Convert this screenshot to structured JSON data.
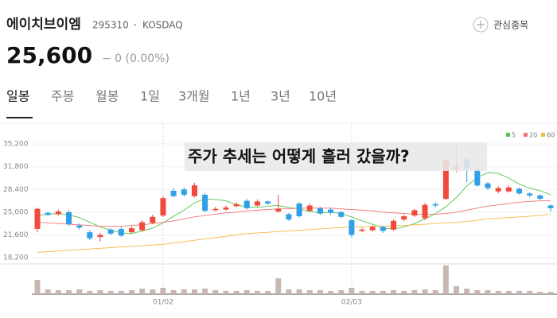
{
  "header": {
    "name": "에이치브이엠",
    "code": "295310",
    "separator": "•",
    "market": "KOSDAQ",
    "watch": "관심종목",
    "price": "25,600",
    "change": "− 0 (0.00%)"
  },
  "tabs": [
    "일봉",
    "주봉",
    "월봉",
    "1일",
    "3개월",
    "1년",
    "3년",
    "10년"
  ],
  "chart_data": {
    "type": "candlestick",
    "annotation": "주가 추세는 어떻게 흘러 갔을까?",
    "categories": [
      null,
      null,
      null,
      null,
      null,
      null,
      null,
      null,
      null,
      null,
      null,
      null,
      "01/02",
      null,
      null,
      null,
      null,
      null,
      null,
      null,
      null,
      null,
      null,
      null,
      null,
      null,
      null,
      null,
      null,
      null,
      "02/03",
      null,
      null,
      null,
      null,
      null,
      null,
      null,
      null,
      null,
      null,
      null,
      null,
      null,
      null,
      null,
      null,
      null,
      null,
      null
    ],
    "open": [
      22500,
      24900,
      24700,
      25000,
      23000,
      22000,
      21300,
      22400,
      22500,
      22000,
      22300,
      23400,
      24500,
      28200,
      28400,
      27400,
      27600,
      25300,
      25400,
      25900,
      26700,
      26000,
      26600,
      25100,
      24700,
      26300,
      25200,
      25600,
      25400,
      25000,
      23800,
      22200,
      22300,
      22800,
      22400,
      23900,
      24500,
      24100,
      26200,
      27000,
      31400,
      32900,
      31400,
      29300,
      28100,
      28100,
      28500,
      27800,
      27500,
      26000
    ],
    "close": [
      25500,
      24600,
      25100,
      23200,
      22700,
      21100,
      21600,
      21800,
      21500,
      22600,
      23500,
      24300,
      27100,
      27400,
      27600,
      29000,
      25200,
      25500,
      25700,
      26200,
      25600,
      26600,
      26300,
      25500,
      23900,
      24400,
      26000,
      24800,
      24900,
      24300,
      21600,
      22400,
      22800,
      22200,
      23700,
      24400,
      25300,
      26100,
      26000,
      32800,
      31800,
      31500,
      29000,
      28600,
      28600,
      28700,
      27800,
      27500,
      27000,
      25600
    ],
    "high": [
      25700,
      25100,
      25400,
      25300,
      23300,
      22300,
      21900,
      22600,
      22800,
      22900,
      23800,
      24600,
      27400,
      28600,
      28700,
      29400,
      27900,
      25800,
      26000,
      26500,
      27000,
      26900,
      26800,
      27600,
      24900,
      26500,
      26300,
      25800,
      25600,
      25200,
      24000,
      22700,
      23000,
      23000,
      23900,
      24600,
      25500,
      26400,
      26500,
      33000,
      35000,
      33200,
      31600,
      29500,
      28900,
      29000,
      28700,
      28000,
      27700,
      26200
    ],
    "low": [
      22000,
      24400,
      24500,
      22900,
      22400,
      20800,
      20600,
      21600,
      21300,
      21800,
      22100,
      23200,
      24300,
      27200,
      27300,
      27200,
      25000,
      25100,
      25200,
      25700,
      25400,
      25800,
      26100,
      24900,
      23700,
      24200,
      25000,
      24600,
      24600,
      24100,
      21200,
      22000,
      22100,
      21900,
      22200,
      23700,
      24300,
      23800,
      25700,
      26800,
      31000,
      29500,
      28800,
      28300,
      27800,
      27900,
      27600,
      27200,
      26800,
      25100
    ],
    "up_color": "#ef4a3b",
    "down_color": "#2f9fe6",
    "series": [
      {
        "name": "5",
        "color": "#53c44b",
        "values": [
          24500,
          24700,
          24800,
          24600,
          24200,
          23500,
          22800,
          22300,
          21900,
          21800,
          22200,
          22600,
          23400,
          24400,
          25300,
          26400,
          27000,
          26900,
          26700,
          26100,
          25800,
          25700,
          25900,
          26000,
          25700,
          25500,
          25100,
          24900,
          25000,
          24800,
          24300,
          23700,
          23200,
          22600,
          22500,
          22800,
          23300,
          24000,
          24800,
          25800,
          27200,
          28900,
          30200,
          30900,
          30800,
          30100,
          29200,
          28600,
          28200,
          27600
        ]
      },
      {
        "name": "20",
        "color": "#f07474",
        "values": [
          23500,
          23400,
          23300,
          23200,
          23100,
          23000,
          22900,
          22900,
          22900,
          23000,
          23100,
          23300,
          23500,
          23700,
          24000,
          24300,
          24500,
          24700,
          24900,
          25000,
          25200,
          25300,
          25400,
          25500,
          25500,
          25600,
          25600,
          25600,
          25600,
          25500,
          25400,
          25300,
          25200,
          25000,
          24900,
          24800,
          24700,
          24700,
          24700,
          24800,
          25000,
          25300,
          25600,
          25900,
          26100,
          26300,
          26500,
          26600,
          26700,
          26700
        ]
      },
      {
        "name": "60",
        "color": "#f5b94a",
        "values": [
          19000,
          19100,
          19200,
          19300,
          19400,
          19500,
          19600,
          19700,
          19800,
          19900,
          20000,
          20100,
          20200,
          20400,
          20600,
          20800,
          21000,
          21200,
          21400,
          21600,
          21800,
          21900,
          22000,
          22100,
          22200,
          22300,
          22400,
          22500,
          22600,
          22700,
          22800,
          22800,
          22900,
          22900,
          23000,
          23000,
          23100,
          23200,
          23300,
          23400,
          23500,
          23600,
          23800,
          24000,
          24100,
          24200,
          24300,
          24400,
          24500,
          24700
        ]
      }
    ],
    "volume": [
      18,
      6,
      5,
      5,
      6,
      4,
      5,
      4,
      4,
      5,
      7,
      6,
      8,
      5,
      6,
      6,
      7,
      5,
      4,
      4,
      5,
      4,
      4,
      20,
      6,
      6,
      5,
      5,
      4,
      5,
      8,
      4,
      4,
      4,
      5,
      4,
      5,
      6,
      5,
      36,
      10,
      7,
      5,
      5,
      4,
      4,
      4,
      4,
      3,
      3
    ],
    "volume_color": "#c8b7b1",
    "vlim": [
      0,
      40
    ],
    "ylim": [
      17500,
      38300
    ],
    "yticks": [
      {
        "value": 18200,
        "label": "18,200"
      },
      {
        "value": 21600,
        "label": "21,600"
      },
      {
        "value": 25000,
        "label": "25,000"
      },
      {
        "value": 28400,
        "label": "28,400"
      },
      {
        "value": 31800,
        "label": "31,800"
      },
      {
        "value": 35200,
        "label": "35,200"
      }
    ],
    "grid": true
  }
}
